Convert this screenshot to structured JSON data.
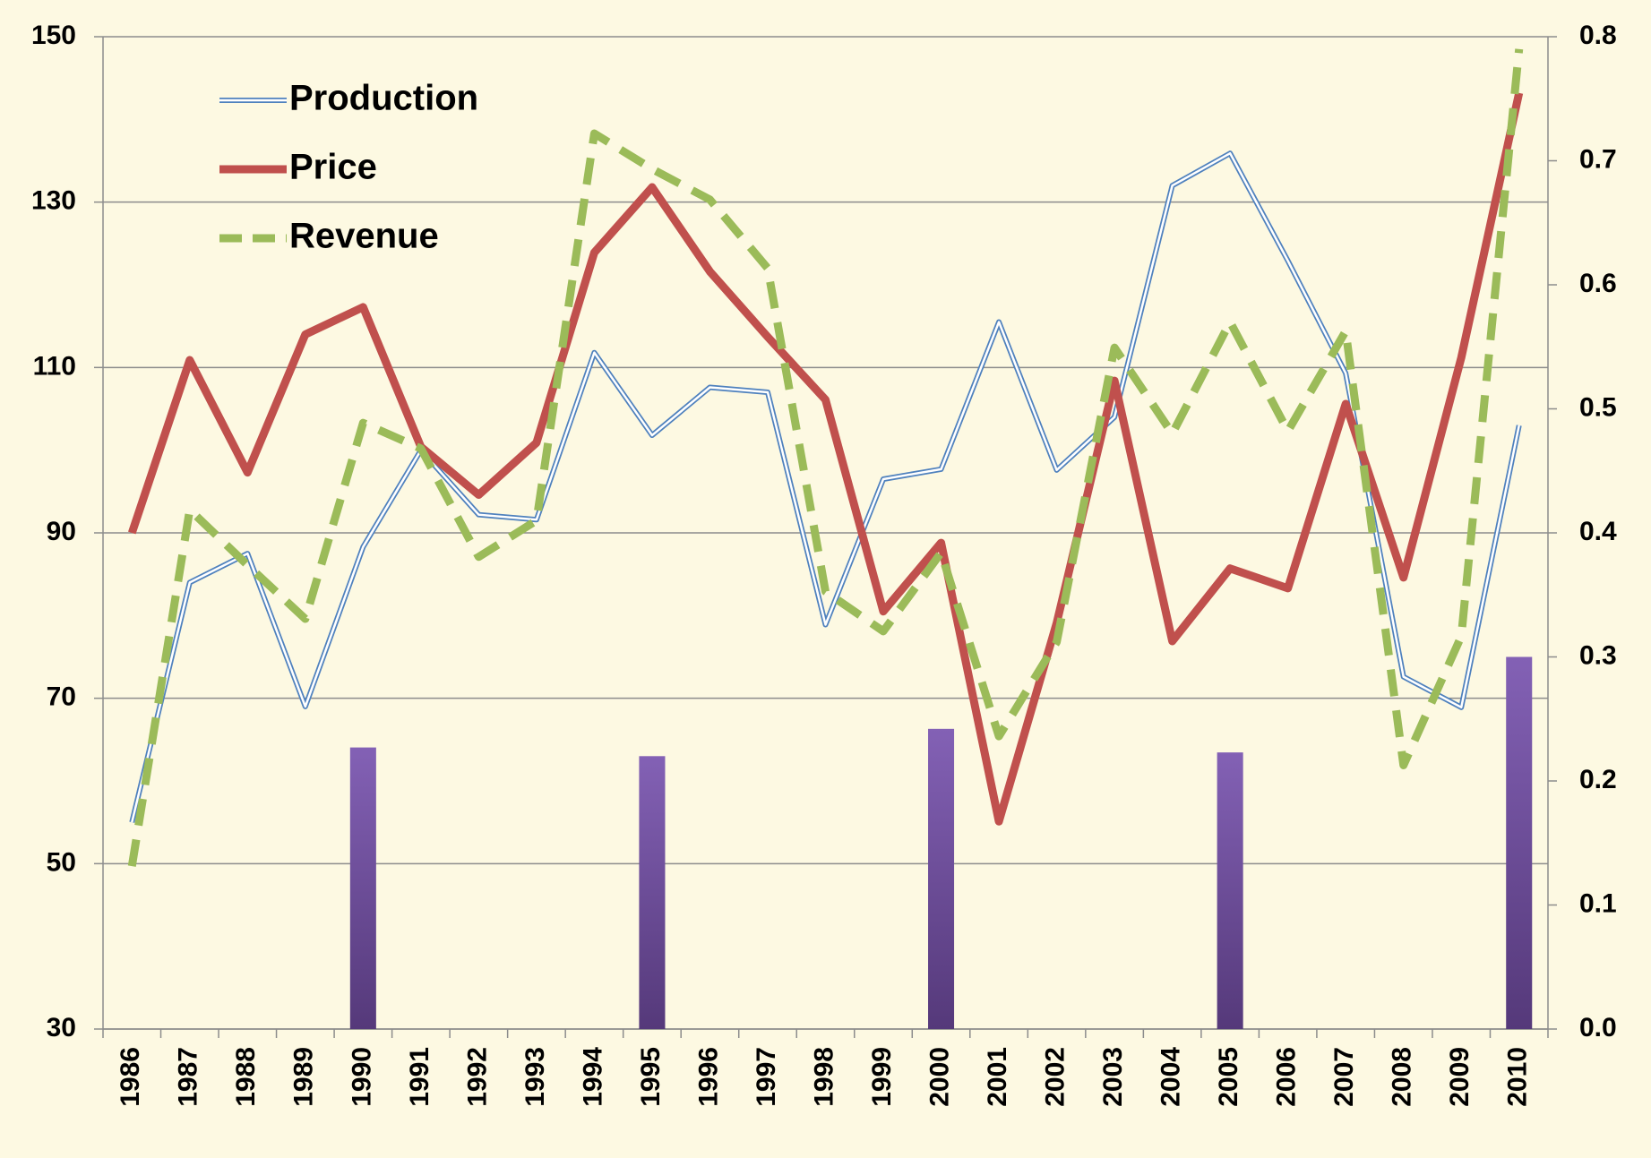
{
  "chart_data": {
    "type": "line",
    "categories": [
      "1986",
      "1987",
      "1988",
      "1989",
      "1990",
      "1991",
      "1992",
      "1993",
      "1994",
      "1995",
      "1996",
      "1997",
      "1998",
      "1999",
      "2000",
      "2001",
      "2002",
      "2003",
      "2004",
      "2005",
      "2006",
      "2007",
      "2008",
      "2009",
      "2010"
    ],
    "series": [
      {
        "name": "Production",
        "color": "#4f81bd",
        "style": "double",
        "values": [
          55,
          84,
          87.5,
          69,
          88.3,
          100,
          92.2,
          91.6,
          111.8,
          101.8,
          107.6,
          107,
          78.9,
          96.5,
          97.7,
          115.5,
          97.6,
          104,
          132,
          135.9,
          122.9,
          109.3,
          72.6,
          68.9,
          103
        ]
      },
      {
        "name": "Price",
        "color": "#c0504d",
        "style": "solid",
        "values": [
          90,
          110.9,
          97.3,
          114,
          117.3,
          100.4,
          94.6,
          100.9,
          123.9,
          131.8,
          121.6,
          113.7,
          106.1,
          80.5,
          88.8,
          55.1,
          79.1,
          108.4,
          76.9,
          85.7,
          83.3,
          105.6,
          84.6,
          111.2,
          143.2
        ]
      },
      {
        "name": "Revenue",
        "color": "#9bbb59",
        "style": "dashed",
        "values": [
          49.7,
          92.8,
          86.1,
          79.6,
          103.3,
          100.2,
          87.1,
          91.5,
          138.3,
          134,
          130.3,
          122,
          82.9,
          78.1,
          87.6,
          65.4,
          76.8,
          112.4,
          102,
          115.5,
          102.3,
          114.4,
          61.9,
          77.5,
          148.5
        ]
      },
      {
        "type": "bar",
        "axis": "y2",
        "color": "#7b5aa6",
        "values": [
          null,
          null,
          null,
          null,
          0.227,
          null,
          null,
          null,
          null,
          0.22,
          null,
          null,
          null,
          null,
          0.242,
          null,
          null,
          null,
          null,
          0.223,
          null,
          null,
          null,
          null,
          0.3
        ]
      }
    ],
    "ylim": [
      30,
      150
    ],
    "yticks": [
      30,
      50,
      70,
      90,
      110,
      130,
      150
    ],
    "y2lim": [
      0,
      0.8
    ],
    "y2ticks": [
      {
        "value": 0,
        "label": "0.0"
      },
      0.1,
      0.2,
      0.3,
      0.4,
      0.5,
      0.6,
      0.7,
      0.8
    ],
    "grid": true,
    "legend": "top-left"
  }
}
